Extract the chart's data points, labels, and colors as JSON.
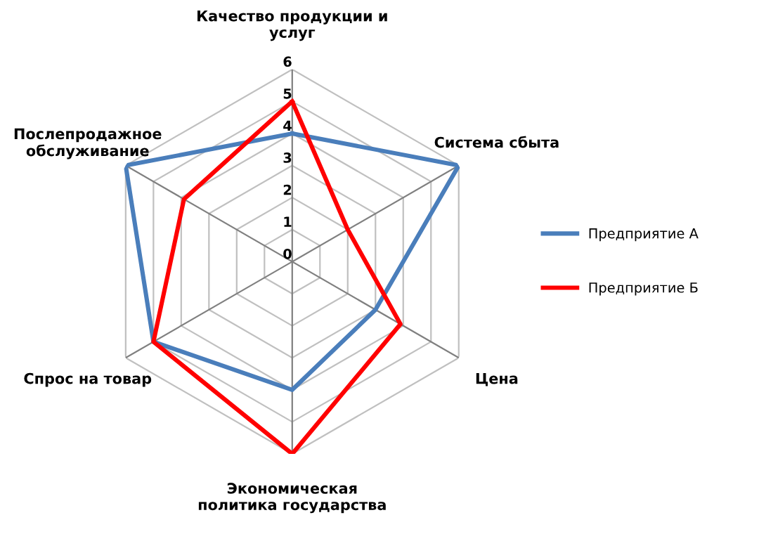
{
  "chart_data": {
    "type": "radar",
    "categories": [
      "Качество продукции и\nуслуг",
      "Система сбыта",
      "Цена",
      "Экономическая\nполитика государства",
      "Спрос на товар",
      "Послепродажное\nобслуживание"
    ],
    "series": [
      {
        "name": "Предприятие А",
        "color": "#4a7ebb",
        "values": [
          4,
          6,
          3,
          4,
          5,
          6
        ]
      },
      {
        "name": "Предприятие Б",
        "color": "#ff0000",
        "values": [
          5,
          2,
          3.9,
          6,
          5,
          3.9
        ]
      }
    ],
    "ylim": [
      0,
      6
    ],
    "yticks": [
      0,
      1,
      2,
      3,
      4,
      5,
      6
    ],
    "grid": true,
    "legend": "right",
    "marker": "none",
    "line_style": "solid"
  }
}
